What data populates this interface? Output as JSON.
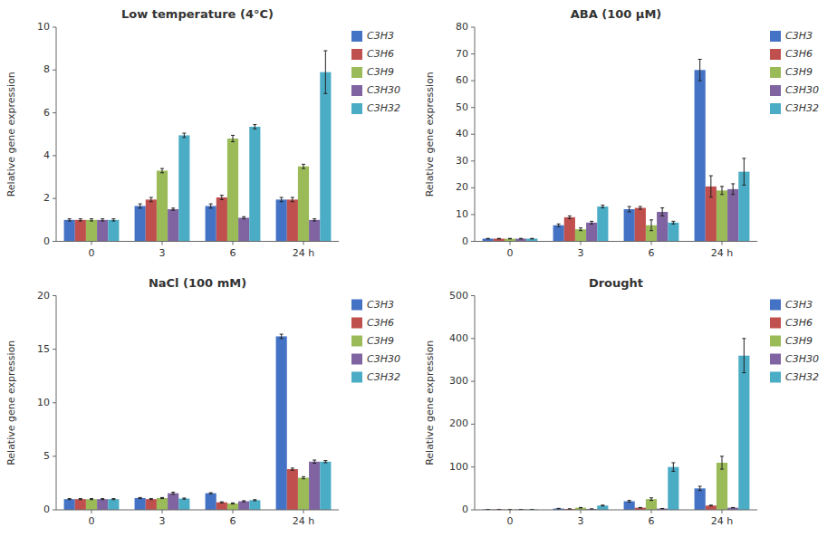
{
  "chart_data": [
    {
      "type": "bar",
      "title": "Low temperature (4°C)",
      "y_label": "Relative gene expression",
      "categories": [
        "0",
        "3",
        "6",
        "24 h"
      ],
      "ylim": [
        0,
        10
      ],
      "yticks": [
        0,
        2,
        4,
        6,
        8,
        10
      ],
      "grid": false,
      "legend": "right",
      "series": [
        {
          "name": "C3H3",
          "color": "#4472c4",
          "values": [
            1.0,
            1.65,
            1.65,
            1.95
          ],
          "errors": [
            0.05,
            0.1,
            0.1,
            0.1
          ]
        },
        {
          "name": "C3H6",
          "color": "#c0504d",
          "values": [
            1.0,
            1.95,
            2.05,
            1.95
          ],
          "errors": [
            0.05,
            0.1,
            0.1,
            0.1
          ]
        },
        {
          "name": "C3H9",
          "color": "#9bbb59",
          "values": [
            1.0,
            3.3,
            4.8,
            3.5
          ],
          "errors": [
            0.05,
            0.1,
            0.15,
            0.1
          ]
        },
        {
          "name": "C3H30",
          "color": "#8064a2",
          "values": [
            1.0,
            1.5,
            1.1,
            1.0
          ],
          "errors": [
            0.05,
            0.05,
            0.05,
            0.05
          ]
        },
        {
          "name": "C3H32",
          "color": "#4bacc6",
          "values": [
            1.0,
            4.95,
            5.35,
            7.9
          ],
          "errors": [
            0.05,
            0.1,
            0.1,
            1.0
          ]
        }
      ]
    },
    {
      "type": "bar",
      "title": "ABA (100 μM)",
      "y_label": "Relative gene expression",
      "categories": [
        "0",
        "3",
        "6",
        "24 h"
      ],
      "ylim": [
        0,
        80
      ],
      "yticks": [
        0,
        10,
        20,
        30,
        40,
        50,
        60,
        70,
        80
      ],
      "grid": false,
      "legend": "right",
      "series": [
        {
          "name": "C3H3",
          "color": "#4472c4",
          "values": [
            1.0,
            6.0,
            12.0,
            64.0
          ],
          "errors": [
            0.1,
            0.5,
            1.0,
            4.0
          ]
        },
        {
          "name": "C3H6",
          "color": "#c0504d",
          "values": [
            1.0,
            9.0,
            12.5,
            20.5
          ],
          "errors": [
            0.1,
            0.5,
            0.5,
            4.0
          ]
        },
        {
          "name": "C3H9",
          "color": "#9bbb59",
          "values": [
            1.0,
            4.5,
            6.0,
            19.0
          ],
          "errors": [
            0.1,
            0.5,
            2.0,
            1.5
          ]
        },
        {
          "name": "C3H30",
          "color": "#8064a2",
          "values": [
            1.0,
            7.0,
            11.0,
            19.5
          ],
          "errors": [
            0.1,
            0.5,
            1.5,
            2.0
          ]
        },
        {
          "name": "C3H32",
          "color": "#4bacc6",
          "values": [
            1.0,
            13.0,
            7.0,
            26.0
          ],
          "errors": [
            0.1,
            0.5,
            0.5,
            5.0
          ]
        }
      ]
    },
    {
      "type": "bar",
      "title": "NaCl (100 mM)",
      "y_label": "Relative gene expression",
      "categories": [
        "0",
        "3",
        "6",
        "24 h"
      ],
      "ylim": [
        0,
        20
      ],
      "yticks": [
        0,
        5,
        10,
        15,
        20
      ],
      "grid": false,
      "legend": "right",
      "series": [
        {
          "name": "C3H3",
          "color": "#4472c4",
          "values": [
            1.0,
            1.1,
            1.55,
            16.2
          ],
          "errors": [
            0.05,
            0.05,
            0.05,
            0.2
          ]
        },
        {
          "name": "C3H6",
          "color": "#c0504d",
          "values": [
            1.0,
            1.0,
            0.7,
            3.8
          ],
          "errors": [
            0.05,
            0.05,
            0.05,
            0.1
          ]
        },
        {
          "name": "C3H9",
          "color": "#9bbb59",
          "values": [
            1.0,
            1.1,
            0.6,
            3.0
          ],
          "errors": [
            0.05,
            0.05,
            0.05,
            0.1
          ]
        },
        {
          "name": "C3H30",
          "color": "#8064a2",
          "values": [
            1.0,
            1.55,
            0.8,
            4.5
          ],
          "errors": [
            0.05,
            0.1,
            0.05,
            0.15
          ]
        },
        {
          "name": "C3H32",
          "color": "#4bacc6",
          "values": [
            1.0,
            1.05,
            0.9,
            4.5
          ],
          "errors": [
            0.05,
            0.05,
            0.05,
            0.1
          ]
        }
      ]
    },
    {
      "type": "bar",
      "title": "Drought",
      "y_label": "Relative gene expression",
      "categories": [
        "0",
        "3",
        "6",
        "24 h"
      ],
      "ylim": [
        0,
        500
      ],
      "yticks": [
        0,
        100,
        200,
        300,
        400,
        500
      ],
      "grid": false,
      "legend": "right",
      "series": [
        {
          "name": "C3H3",
          "color": "#4472c4",
          "values": [
            1.0,
            3.0,
            20.0,
            50.0
          ],
          "errors": [
            0.1,
            0.5,
            2.0,
            5.0
          ]
        },
        {
          "name": "C3H6",
          "color": "#c0504d",
          "values": [
            1.0,
            2.0,
            5.0,
            10.0
          ],
          "errors": [
            0.1,
            0.3,
            0.5,
            1.0
          ]
        },
        {
          "name": "C3H9",
          "color": "#9bbb59",
          "values": [
            1.0,
            5.0,
            25.0,
            110.0
          ],
          "errors": [
            0.1,
            0.5,
            3.0,
            15.0
          ]
        },
        {
          "name": "C3H30",
          "color": "#8064a2",
          "values": [
            1.0,
            2.0,
            3.0,
            5.0
          ],
          "errors": [
            0.1,
            0.2,
            0.3,
            0.5
          ]
        },
        {
          "name": "C3H32",
          "color": "#4bacc6",
          "values": [
            1.0,
            10.0,
            100.0,
            360.0
          ],
          "errors": [
            0.1,
            1.0,
            10.0,
            40.0
          ]
        }
      ]
    }
  ]
}
